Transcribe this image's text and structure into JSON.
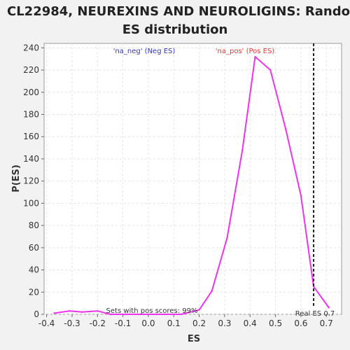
{
  "chart_data": {
    "type": "line",
    "title_line1": "CL22984, NEUREXINS AND NEUROLIGINS: Random",
    "title_line2": "ES distribution",
    "xlabel": "ES",
    "ylabel": "P(ES)",
    "xlim": [
      -0.41,
      0.76
    ],
    "ylim": [
      0,
      244
    ],
    "xticks": [
      -0.4,
      -0.3,
      -0.2,
      -0.1,
      0.0,
      0.1,
      0.2,
      0.3,
      0.4,
      0.5,
      0.6,
      0.7
    ],
    "xtick_labels": [
      "-0.4",
      "-0.3",
      "-0.2",
      "-0.1",
      "0.0",
      "0.1",
      "0.2",
      "0.3",
      "0.4",
      "0.5",
      "0.6",
      "0.7"
    ],
    "yticks": [
      0,
      20,
      40,
      60,
      80,
      100,
      120,
      140,
      160,
      180,
      200,
      220,
      240
    ],
    "ytick_labels": [
      "0",
      "20",
      "40",
      "60",
      "80",
      "100",
      "120",
      "140",
      "160",
      "180",
      "200",
      "220",
      "240"
    ],
    "grid": true,
    "series": [
      {
        "color": "#ee33ee",
        "x": [
          -0.37,
          -0.31,
          -0.26,
          -0.2,
          -0.15,
          -0.09,
          -0.04,
          0.02,
          0.07,
          0.13,
          0.2,
          0.25,
          0.31,
          0.37,
          0.42,
          0.48,
          0.54,
          0.6,
          0.65,
          0.71
        ],
        "y": [
          1,
          3,
          2,
          3,
          0,
          0,
          0,
          0,
          0,
          0,
          4,
          21,
          69,
          148,
          232,
          220,
          167,
          107,
          25,
          6
        ]
      }
    ],
    "real_es": 0.65,
    "annotations": {
      "neg_label": "'na_neg' (Neg ES)",
      "neg_color": "#3333cc",
      "pos_label": "'na_pos' (Pos ES)",
      "pos_color": "#ee3333",
      "sets_label": "Sets with pos scores: 99%",
      "real_es_label": "Real ES 0.7"
    }
  }
}
